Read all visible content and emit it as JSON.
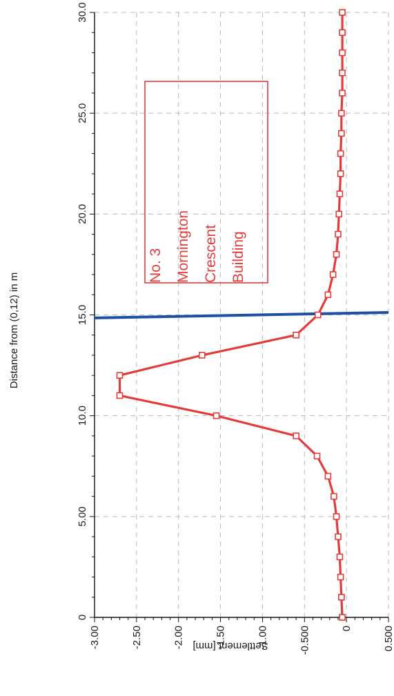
{
  "chart_data": {
    "type": "line",
    "title": "",
    "xlabel": "Distance from (0,12) in m",
    "ylabel": "Settlement [mm]",
    "xlim": [
      0,
      30
    ],
    "ylim": [
      -3.0,
      0.5
    ],
    "x_ticks": [
      {
        "value": 0,
        "label": "0"
      },
      {
        "value": 5,
        "label": "5.00"
      },
      {
        "value": 10,
        "label": "10.0"
      },
      {
        "value": 15,
        "label": "15.0"
      },
      {
        "value": 20,
        "label": "20.0"
      },
      {
        "value": 25,
        "label": "25.0"
      },
      {
        "value": 30,
        "label": "30.0"
      }
    ],
    "y_ticks": [
      {
        "value": -3.0,
        "label": "-3.00"
      },
      {
        "value": -2.5,
        "label": "-2.50"
      },
      {
        "value": -2.0,
        "label": "-2.00"
      },
      {
        "value": -1.5,
        "label": "-1.50"
      },
      {
        "value": -1.0,
        "label": "-1.00"
      },
      {
        "value": -0.5,
        "label": "-0.500"
      },
      {
        "value": 0,
        "label": "0"
      },
      {
        "value": 0.5,
        "label": "0.500"
      }
    ],
    "grid": true,
    "series": [
      {
        "color": "#e53a3a",
        "marker": "square",
        "x": [
          0,
          1,
          2,
          3,
          4,
          5,
          6,
          7,
          8,
          9,
          10,
          11,
          12,
          13,
          14,
          15,
          16,
          17,
          18,
          19,
          20,
          21,
          22,
          23,
          24,
          25,
          26,
          27,
          28,
          29,
          30
        ],
        "y": [
          -0.05,
          -0.06,
          -0.07,
          -0.08,
          -0.1,
          -0.12,
          -0.15,
          -0.22,
          -0.35,
          -0.6,
          -1.55,
          -2.7,
          -2.7,
          -1.72,
          -0.6,
          -0.34,
          -0.22,
          -0.16,
          -0.12,
          -0.1,
          -0.09,
          -0.08,
          -0.07,
          -0.07,
          -0.06,
          -0.06,
          -0.05,
          -0.05,
          -0.05,
          -0.05,
          -0.05
        ]
      }
    ],
    "reference_line": {
      "color": "#1f4fa3",
      "from": {
        "x": 14.85,
        "y": -3.0
      },
      "to": {
        "x": 15.12,
        "y": 0.5
      }
    },
    "annotation": {
      "color": "#e53a3a",
      "lines": [
        "No. 3",
        "Mornington",
        "Crescent",
        "Building"
      ]
    }
  }
}
